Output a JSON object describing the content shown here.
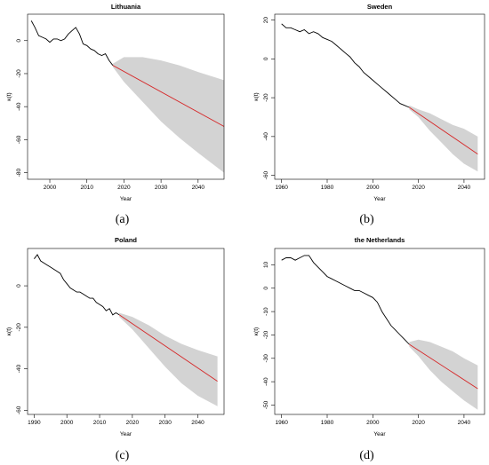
{
  "colors": {
    "band": "#d3d3d3",
    "history": "#000000",
    "forecast": "#d62728",
    "axis": "#000000"
  },
  "chart_data": [
    {
      "type": "line",
      "title": "Lithuania",
      "caption": "(a)",
      "xlabel": "Year",
      "ylabel": "κ(t)",
      "xlim": [
        1994,
        2047
      ],
      "ylim": [
        -84,
        16
      ],
      "xticks": [
        2000,
        2010,
        2020,
        2030,
        2040
      ],
      "yticks": [
        0,
        -20,
        -40,
        -60,
        -80
      ],
      "series": [
        {
          "role": "history",
          "x": [
            1995,
            1996,
            1997,
            1998,
            1999,
            2000,
            2001,
            2002,
            2003,
            2004,
            2005,
            2006,
            2007,
            2008,
            2009,
            2010,
            2011,
            2012,
            2013,
            2014,
            2015,
            2016,
            2017
          ],
          "values": [
            12,
            8,
            3,
            2,
            1,
            -1,
            1,
            1,
            0,
            1,
            4,
            6,
            8,
            4,
            -2,
            -3,
            -5,
            -6,
            -8,
            -9,
            -8,
            -12,
            -15
          ]
        },
        {
          "role": "forecast",
          "x": [
            2017,
            2047
          ],
          "values": [
            -15,
            -52
          ]
        },
        {
          "role": "band",
          "x": [
            2017,
            2020,
            2025,
            2030,
            2035,
            2040,
            2047
          ],
          "upper": [
            -14,
            -10,
            -10,
            -12,
            -15,
            -19,
            -24
          ],
          "lower": [
            -16,
            -25,
            -37,
            -49,
            -59,
            -68,
            -80
          ]
        }
      ]
    },
    {
      "type": "line",
      "title": "Sweden",
      "caption": "(b)",
      "xlabel": "Year",
      "ylabel": "κ(t)",
      "xlim": [
        1957,
        2049
      ],
      "ylim": [
        -62,
        23
      ],
      "xticks": [
        1960,
        1980,
        2000,
        2020,
        2040
      ],
      "yticks": [
        20,
        0,
        -20,
        -40,
        -60
      ],
      "series": [
        {
          "role": "history",
          "x": [
            1960,
            1962,
            1964,
            1966,
            1968,
            1970,
            1972,
            1974,
            1976,
            1978,
            1980,
            1982,
            1984,
            1986,
            1988,
            1990,
            1992,
            1994,
            1996,
            1998,
            2000,
            2002,
            2004,
            2006,
            2008,
            2010,
            2012,
            2014,
            2016
          ],
          "values": [
            18,
            16,
            16,
            15,
            14,
            15,
            13,
            14,
            13,
            11,
            10,
            9,
            7,
            5,
            3,
            1,
            -2,
            -4,
            -7,
            -9,
            -11,
            -13,
            -15,
            -17,
            -19,
            -21,
            -23,
            -24,
            -25
          ]
        },
        {
          "role": "forecast",
          "x": [
            2016,
            2046
          ],
          "values": [
            -25,
            -49
          ]
        },
        {
          "role": "band",
          "x": [
            2016,
            2020,
            2025,
            2030,
            2035,
            2040,
            2046
          ],
          "upper": [
            -24,
            -26,
            -28,
            -31,
            -34,
            -36,
            -40
          ],
          "lower": [
            -26,
            -30,
            -37,
            -43,
            -49,
            -54,
            -58
          ]
        }
      ]
    },
    {
      "type": "line",
      "title": "Poland",
      "caption": "(c)",
      "xlabel": "Year",
      "ylabel": "κ(t)",
      "xlim": [
        1988,
        2048
      ],
      "ylim": [
        -62,
        18
      ],
      "xticks": [
        1990,
        2000,
        2010,
        2020,
        2030,
        2040
      ],
      "yticks": [
        0,
        -20,
        -40,
        -60
      ],
      "series": [
        {
          "role": "history",
          "x": [
            1990,
            1991,
            1992,
            1993,
            1994,
            1995,
            1996,
            1997,
            1998,
            1999,
            2000,
            2001,
            2002,
            2003,
            2004,
            2005,
            2006,
            2007,
            2008,
            2009,
            2010,
            2011,
            2012,
            2013,
            2014,
            2015,
            2016
          ],
          "values": [
            13,
            15,
            12,
            11,
            10,
            9,
            8,
            7,
            6,
            3,
            1,
            -1,
            -2,
            -3,
            -3,
            -4,
            -5,
            -6,
            -6,
            -8,
            -9,
            -10,
            -12,
            -11,
            -14,
            -13,
            -14
          ]
        },
        {
          "role": "forecast",
          "x": [
            2016,
            2046
          ],
          "values": [
            -14,
            -46
          ]
        },
        {
          "role": "band",
          "x": [
            2016,
            2020,
            2025,
            2030,
            2035,
            2040,
            2046
          ],
          "upper": [
            -13,
            -15,
            -19,
            -24,
            -28,
            -31,
            -34
          ],
          "lower": [
            -15,
            -21,
            -30,
            -39,
            -47,
            -53,
            -58
          ]
        }
      ]
    },
    {
      "type": "line",
      "title": "the Netherlands",
      "caption": "(d)",
      "xlabel": "Year",
      "ylabel": "κ(t)",
      "xlim": [
        1957,
        2049
      ],
      "ylim": [
        -54,
        17
      ],
      "xticks": [
        1960,
        1980,
        2000,
        2020,
        2040
      ],
      "yticks": [
        10,
        0,
        -10,
        -20,
        -30,
        -40,
        -50
      ],
      "series": [
        {
          "role": "history",
          "x": [
            1960,
            1962,
            1964,
            1966,
            1968,
            1970,
            1972,
            1974,
            1976,
            1978,
            1980,
            1982,
            1984,
            1986,
            1988,
            1990,
            1992,
            1994,
            1996,
            1998,
            2000,
            2002,
            2004,
            2006,
            2008,
            2010,
            2012,
            2014,
            2016
          ],
          "values": [
            12,
            13,
            13,
            12,
            13,
            14,
            14,
            11,
            9,
            7,
            5,
            4,
            3,
            2,
            1,
            0,
            -1,
            -1,
            -2,
            -3,
            -4,
            -6,
            -10,
            -13,
            -16,
            -18,
            -20,
            -22,
            -24
          ]
        },
        {
          "role": "forecast",
          "x": [
            2016,
            2046
          ],
          "values": [
            -24,
            -43
          ]
        },
        {
          "role": "band",
          "x": [
            2016,
            2020,
            2025,
            2030,
            2035,
            2040,
            2046
          ],
          "upper": [
            -23,
            -22,
            -23,
            -25,
            -27,
            -30,
            -33
          ],
          "lower": [
            -25,
            -29,
            -35,
            -40,
            -44,
            -48,
            -52
          ]
        }
      ]
    }
  ]
}
